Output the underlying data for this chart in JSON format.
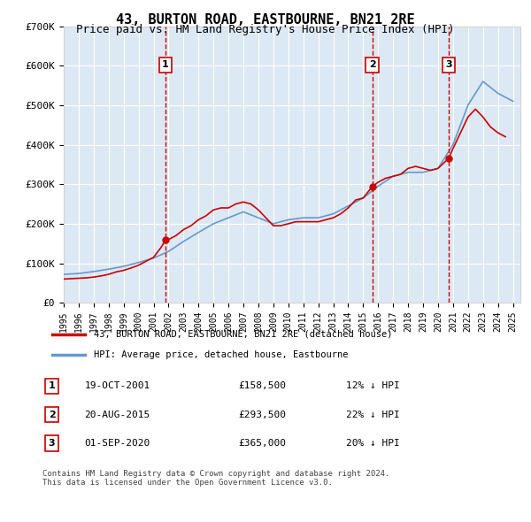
{
  "title": "43, BURTON ROAD, EASTBOURNE, BN21 2RE",
  "subtitle": "Price paid vs. HM Land Registry's House Price Index (HPI)",
  "ylabel": "",
  "ylim": [
    0,
    700000
  ],
  "yticks": [
    0,
    100000,
    200000,
    300000,
    400000,
    500000,
    600000,
    700000
  ],
  "ytick_labels": [
    "£0",
    "£100K",
    "£200K",
    "£300K",
    "£400K",
    "£500K",
    "£600K",
    "£700K"
  ],
  "background_color": "#dce9f5",
  "plot_bg": "#dce9f5",
  "red_line_color": "#cc0000",
  "blue_line_color": "#6699cc",
  "vline_color": "#cc0000",
  "transactions": [
    {
      "x": 2001.8,
      "price": 158500,
      "label": "1",
      "date": "19-OCT-2001",
      "amount": "£158,500",
      "hpi_diff": "12% ↓ HPI"
    },
    {
      "x": 2015.6,
      "price": 293500,
      "label": "2",
      "date": "20-AUG-2015",
      "amount": "£293,500",
      "hpi_diff": "22% ↓ HPI"
    },
    {
      "x": 2020.7,
      "price": 365000,
      "label": "3",
      "date": "01-SEP-2020",
      "amount": "£365,000",
      "hpi_diff": "20% ↓ HPI"
    }
  ],
  "legend_entries": [
    {
      "label": "43, BURTON ROAD, EASTBOURNE, BN21 2RE (detached house)",
      "color": "#cc0000"
    },
    {
      "label": "HPI: Average price, detached house, Eastbourne",
      "color": "#6699cc"
    }
  ],
  "footer": [
    "Contains HM Land Registry data © Crown copyright and database right 2024.",
    "This data is licensed under the Open Government Licence v3.0."
  ],
  "hpi_years": [
    1995,
    1996,
    1997,
    1998,
    1999,
    2000,
    2001,
    2002,
    2003,
    2004,
    2005,
    2006,
    2007,
    2008,
    2009,
    2010,
    2011,
    2012,
    2013,
    2014,
    2015,
    2016,
    2017,
    2018,
    2019,
    2020,
    2021,
    2022,
    2023,
    2024,
    2025
  ],
  "hpi_values": [
    72000,
    74000,
    79000,
    85000,
    92000,
    102000,
    113000,
    130000,
    155000,
    178000,
    200000,
    215000,
    230000,
    215000,
    200000,
    210000,
    215000,
    215000,
    225000,
    245000,
    265000,
    295000,
    320000,
    330000,
    330000,
    340000,
    400000,
    500000,
    560000,
    530000,
    510000
  ],
  "price_years": [
    1995.0,
    1995.5,
    1996.0,
    1996.5,
    1997.0,
    1997.5,
    1998.0,
    1998.5,
    1999.0,
    1999.5,
    2000.0,
    2000.5,
    2001.0,
    2001.5,
    2001.8,
    2002.0,
    2002.5,
    2003.0,
    2003.5,
    2004.0,
    2004.5,
    2005.0,
    2005.5,
    2006.0,
    2006.5,
    2007.0,
    2007.5,
    2008.0,
    2008.5,
    2009.0,
    2009.5,
    2010.0,
    2010.5,
    2011.0,
    2011.5,
    2012.0,
    2012.5,
    2013.0,
    2013.5,
    2014.0,
    2014.5,
    2015.0,
    2015.6,
    2016.0,
    2016.5,
    2017.0,
    2017.5,
    2018.0,
    2018.5,
    2019.0,
    2019.5,
    2020.0,
    2020.7,
    2021.0,
    2021.5,
    2022.0,
    2022.5,
    2023.0,
    2023.5,
    2024.0,
    2024.5
  ],
  "price_values": [
    60000,
    61000,
    62000,
    63000,
    65000,
    68000,
    72000,
    78000,
    82000,
    88000,
    95000,
    105000,
    115000,
    140000,
    158500,
    160000,
    170000,
    185000,
    195000,
    210000,
    220000,
    235000,
    240000,
    240000,
    250000,
    255000,
    250000,
    235000,
    215000,
    195000,
    195000,
    200000,
    205000,
    205000,
    205000,
    205000,
    210000,
    215000,
    225000,
    240000,
    260000,
    265000,
    293500,
    305000,
    315000,
    320000,
    325000,
    340000,
    345000,
    340000,
    335000,
    340000,
    365000,
    390000,
    430000,
    470000,
    490000,
    470000,
    445000,
    430000,
    420000
  ],
  "xlim": [
    1995,
    2025.5
  ],
  "xtick_years": [
    1995,
    1996,
    1997,
    1998,
    1999,
    2000,
    2001,
    2002,
    2003,
    2004,
    2005,
    2006,
    2007,
    2008,
    2009,
    2010,
    2011,
    2012,
    2013,
    2014,
    2015,
    2016,
    2017,
    2018,
    2019,
    2020,
    2021,
    2022,
    2023,
    2024,
    2025
  ]
}
